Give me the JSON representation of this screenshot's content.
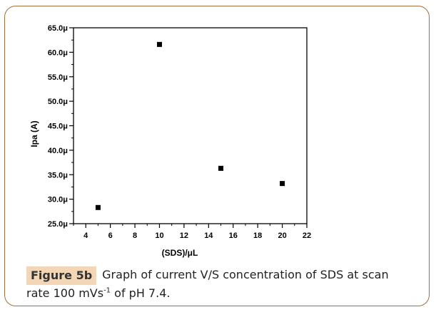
{
  "chart_data": {
    "type": "scatter",
    "xlabel": "(SDS)/μL",
    "ylabel": "Ipa (A)",
    "xlim": [
      3,
      22
    ],
    "ylim": [
      25.0,
      65.0
    ],
    "x_ticks": [
      4,
      6,
      8,
      10,
      12,
      14,
      16,
      18,
      20,
      22
    ],
    "x_tick_labels": [
      "4",
      "6",
      "8",
      "10",
      "12",
      "14",
      "16",
      "18",
      "20",
      "22"
    ],
    "y_ticks": [
      25,
      30,
      35,
      40,
      45,
      50,
      55,
      60,
      65
    ],
    "y_tick_labels": [
      "25.0μ",
      "30.0μ",
      "35.0μ",
      "40.0μ",
      "45.0μ",
      "50.0μ",
      "55.0μ",
      "60.0μ",
      "65.0μ"
    ],
    "series": [
      {
        "x": [
          5,
          10,
          15,
          20
        ],
        "y": [
          28.3,
          61.6,
          36.3,
          33.2
        ]
      }
    ],
    "marker": "square",
    "grid": false
  },
  "caption": {
    "badge": "Figure 5b",
    "text_main": "Graph of current V/S concentration of SDS at scan rate 100 mVs",
    "text_sup": "-1",
    "text_end": " of pH 7.4."
  },
  "colors": {
    "frame": "#a0703a",
    "badge_bg": "#f2d6b5",
    "marker": "#000000"
  }
}
